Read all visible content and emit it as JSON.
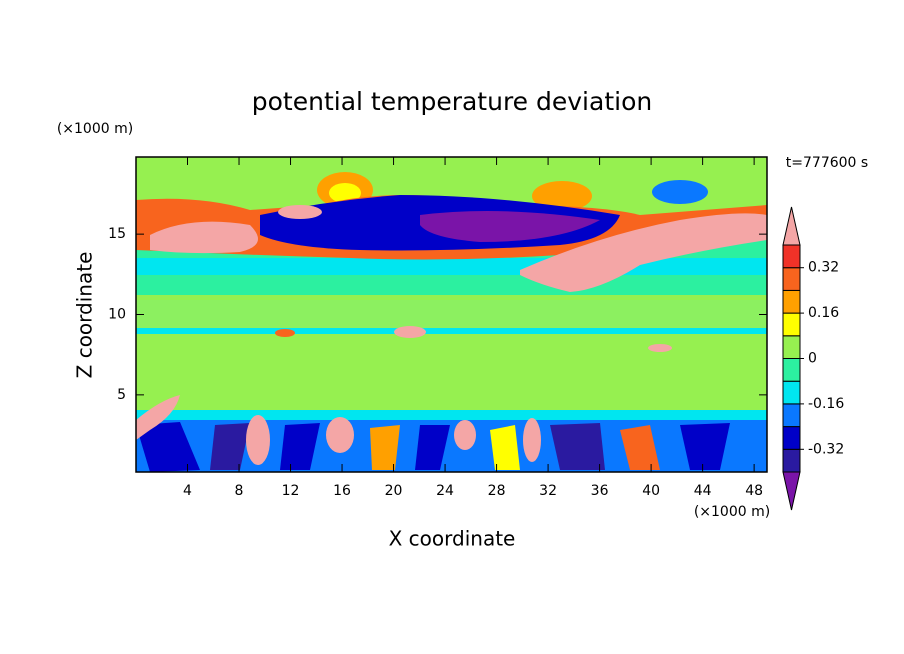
{
  "chart_data": {
    "type": "contour",
    "title": "potential temperature deviation",
    "xlabel": "X coordinate",
    "ylabel": "Z coordinate",
    "x_unit": "(×1000 m)",
    "y_unit": "(×1000 m)",
    "annotation": "t=777600 s",
    "xlim": [
      0,
      49
    ],
    "xticks": [
      4,
      8,
      12,
      16,
      20,
      24,
      28,
      32,
      36,
      40,
      44,
      48
    ],
    "ylim": [
      0.2,
      19.8
    ],
    "yticks": [
      5,
      10,
      15
    ],
    "colorbar": {
      "levels": [
        -0.4,
        -0.32,
        -0.24,
        -0.16,
        -0.08,
        0,
        0.08,
        0.16,
        0.24,
        0.32,
        0.4
      ],
      "colors": [
        "#7a14a8",
        "#2a1aa0",
        "#0000c8",
        "#0a78ff",
        "#00e6f0",
        "#2cf0a0",
        "#96f050",
        "#ffff00",
        "#ffa000",
        "#f8641e",
        "#f03228",
        "#f4a6a6"
      ],
      "ticks": [
        -0.32,
        -0.16,
        0,
        0.16,
        0.32
      ]
    }
  }
}
